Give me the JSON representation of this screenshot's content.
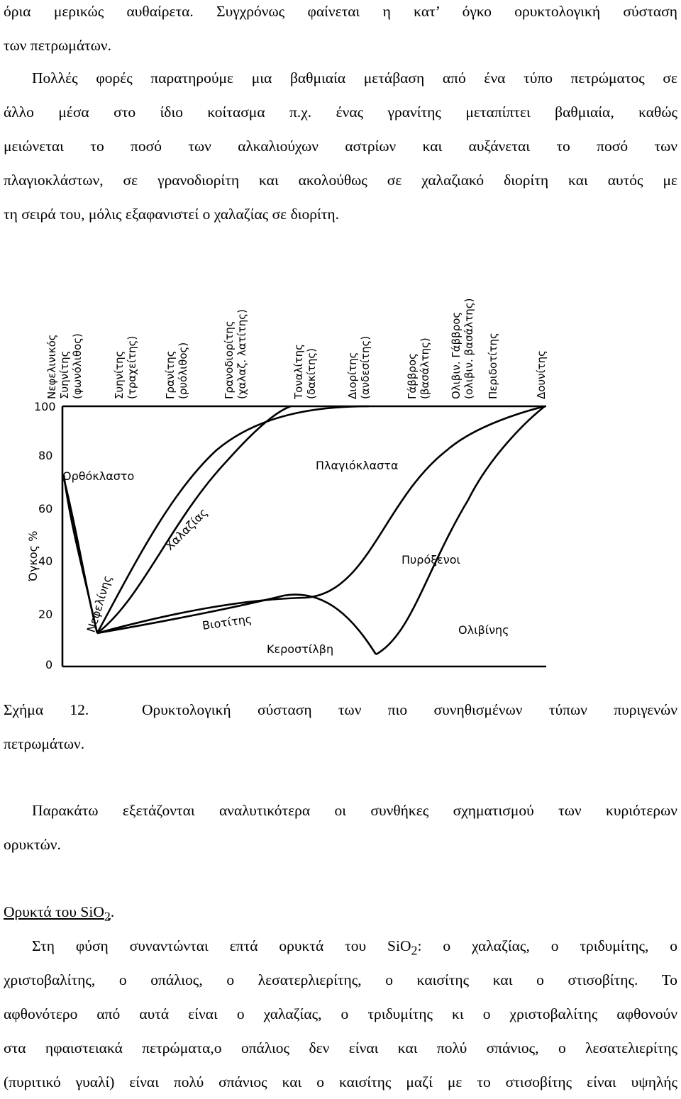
{
  "paragraph1": {
    "lines": [
      "όρια μερικώς αυθαίρετα.  Συγχρόνως φαίνεται η κατ’ όγκο ορυκτολογική σύσταση",
      "των πετρωμάτων."
    ]
  },
  "paragraph2": {
    "lines": [
      "Πολλές φορές παρατηρούμε μια βαθμιαία μετάβαση από ένα τύπο πετρώματος σε",
      "άλλο μέσα στο ίδιο κοίτασμα π.χ. ένας γρανίτης μεταπίπτει βαθμιαία, καθώς",
      "μειώνεται το ποσό των αλκαλιούχων αστρίων και αυξάνεται το ποσό των",
      "πλαγιοκλάστων, σε γρανοδιορίτη και ακολούθως σε χαλαζιακό διορίτη και αυτός με",
      "τη σειρά του, μόλις εξαφανιστεί ο χαλαζίας σε διορίτη."
    ]
  },
  "figure": {
    "y_axis_label": "Όγκος %",
    "y_ticks": [
      "100",
      "80",
      "60",
      "40",
      "20",
      "0"
    ],
    "rock_types": [
      [
        "Νεφελινικός",
        "Συηνίτης",
        "(φωνόλιθος)"
      ],
      [
        "Συηνίτης",
        "(τραχείτης)"
      ],
      [
        "Γρανίτης",
        "(ρυόλιθος)"
      ],
      [
        "Γρανοδιορίτης",
        "(χαλαζ. λατίτης)"
      ],
      [
        "Τοναλίτης",
        "(δακίτης)"
      ],
      [
        "Διορίτης",
        "(ανδεσίτης)"
      ],
      [
        "Γάββρος",
        "(βασάλτης)"
      ],
      [
        "Ολιβιν. Γάββρος",
        "(ολιβιν. βασάλτης)"
      ],
      [
        "Περιδοτίτης"
      ],
      [
        "Δουνίτης"
      ]
    ],
    "minerals": {
      "orthoclase": "Ορθόκλαστο",
      "plagioclase": "Πλαγιόκλαστα",
      "quartz": "Χαλαζίας",
      "nepheline": "Νεφελίνης",
      "biotite": "Βιοτίτης",
      "hornblende": "Κεροστίλβη",
      "pyroxene": "Πυρόξενοι",
      "olivine": "Ολιβίνης"
    }
  },
  "caption": {
    "label": "Σχήμα 12.",
    "text": "Ορυκτολογική σύσταση των πιο συνηθισμένων τύπων πυριγενών",
    "text2": "πετρωμάτων."
  },
  "paragraph3": {
    "lines": [
      "Παρακάτω εξετάζονται αναλυτικότερα οι συνθήκες σχηματισμού των κυριότερων",
      "ορυκτών."
    ]
  },
  "section": {
    "heading_text": "Ορυκτά του SiO",
    "heading_sub": "2",
    "heading_end": "."
  },
  "paragraph4": {
    "line1_start": "Στη φύση συναντώνται επτά ορυκτά του SiO",
    "line1_sub": "2",
    "line1_end": ":   ο χαλαζίας, ο τριδυμίτης, ο",
    "lines": [
      "χριστοβαλίτης, ο οπάλιος, ο λεσατερλιερίτης, ο καισίτης και ο στισοβίτης.  Το",
      "αφθονότερο από αυτά είναι ο χαλαζίας, ο τριδυμίτης κι ο χριστοβαλίτης αφθονούν",
      "στα ηφαιστειακά πετρώματα,ο οπάλιος δεν είναι και πολύ σπάνιος, ο λεσατελιερίτης",
      "(πυριτικό γυαλί) είναι πολύ σπάνιος και ο καισίτης μαζί με το στισοβίτης είναι υψηλής"
    ]
  }
}
